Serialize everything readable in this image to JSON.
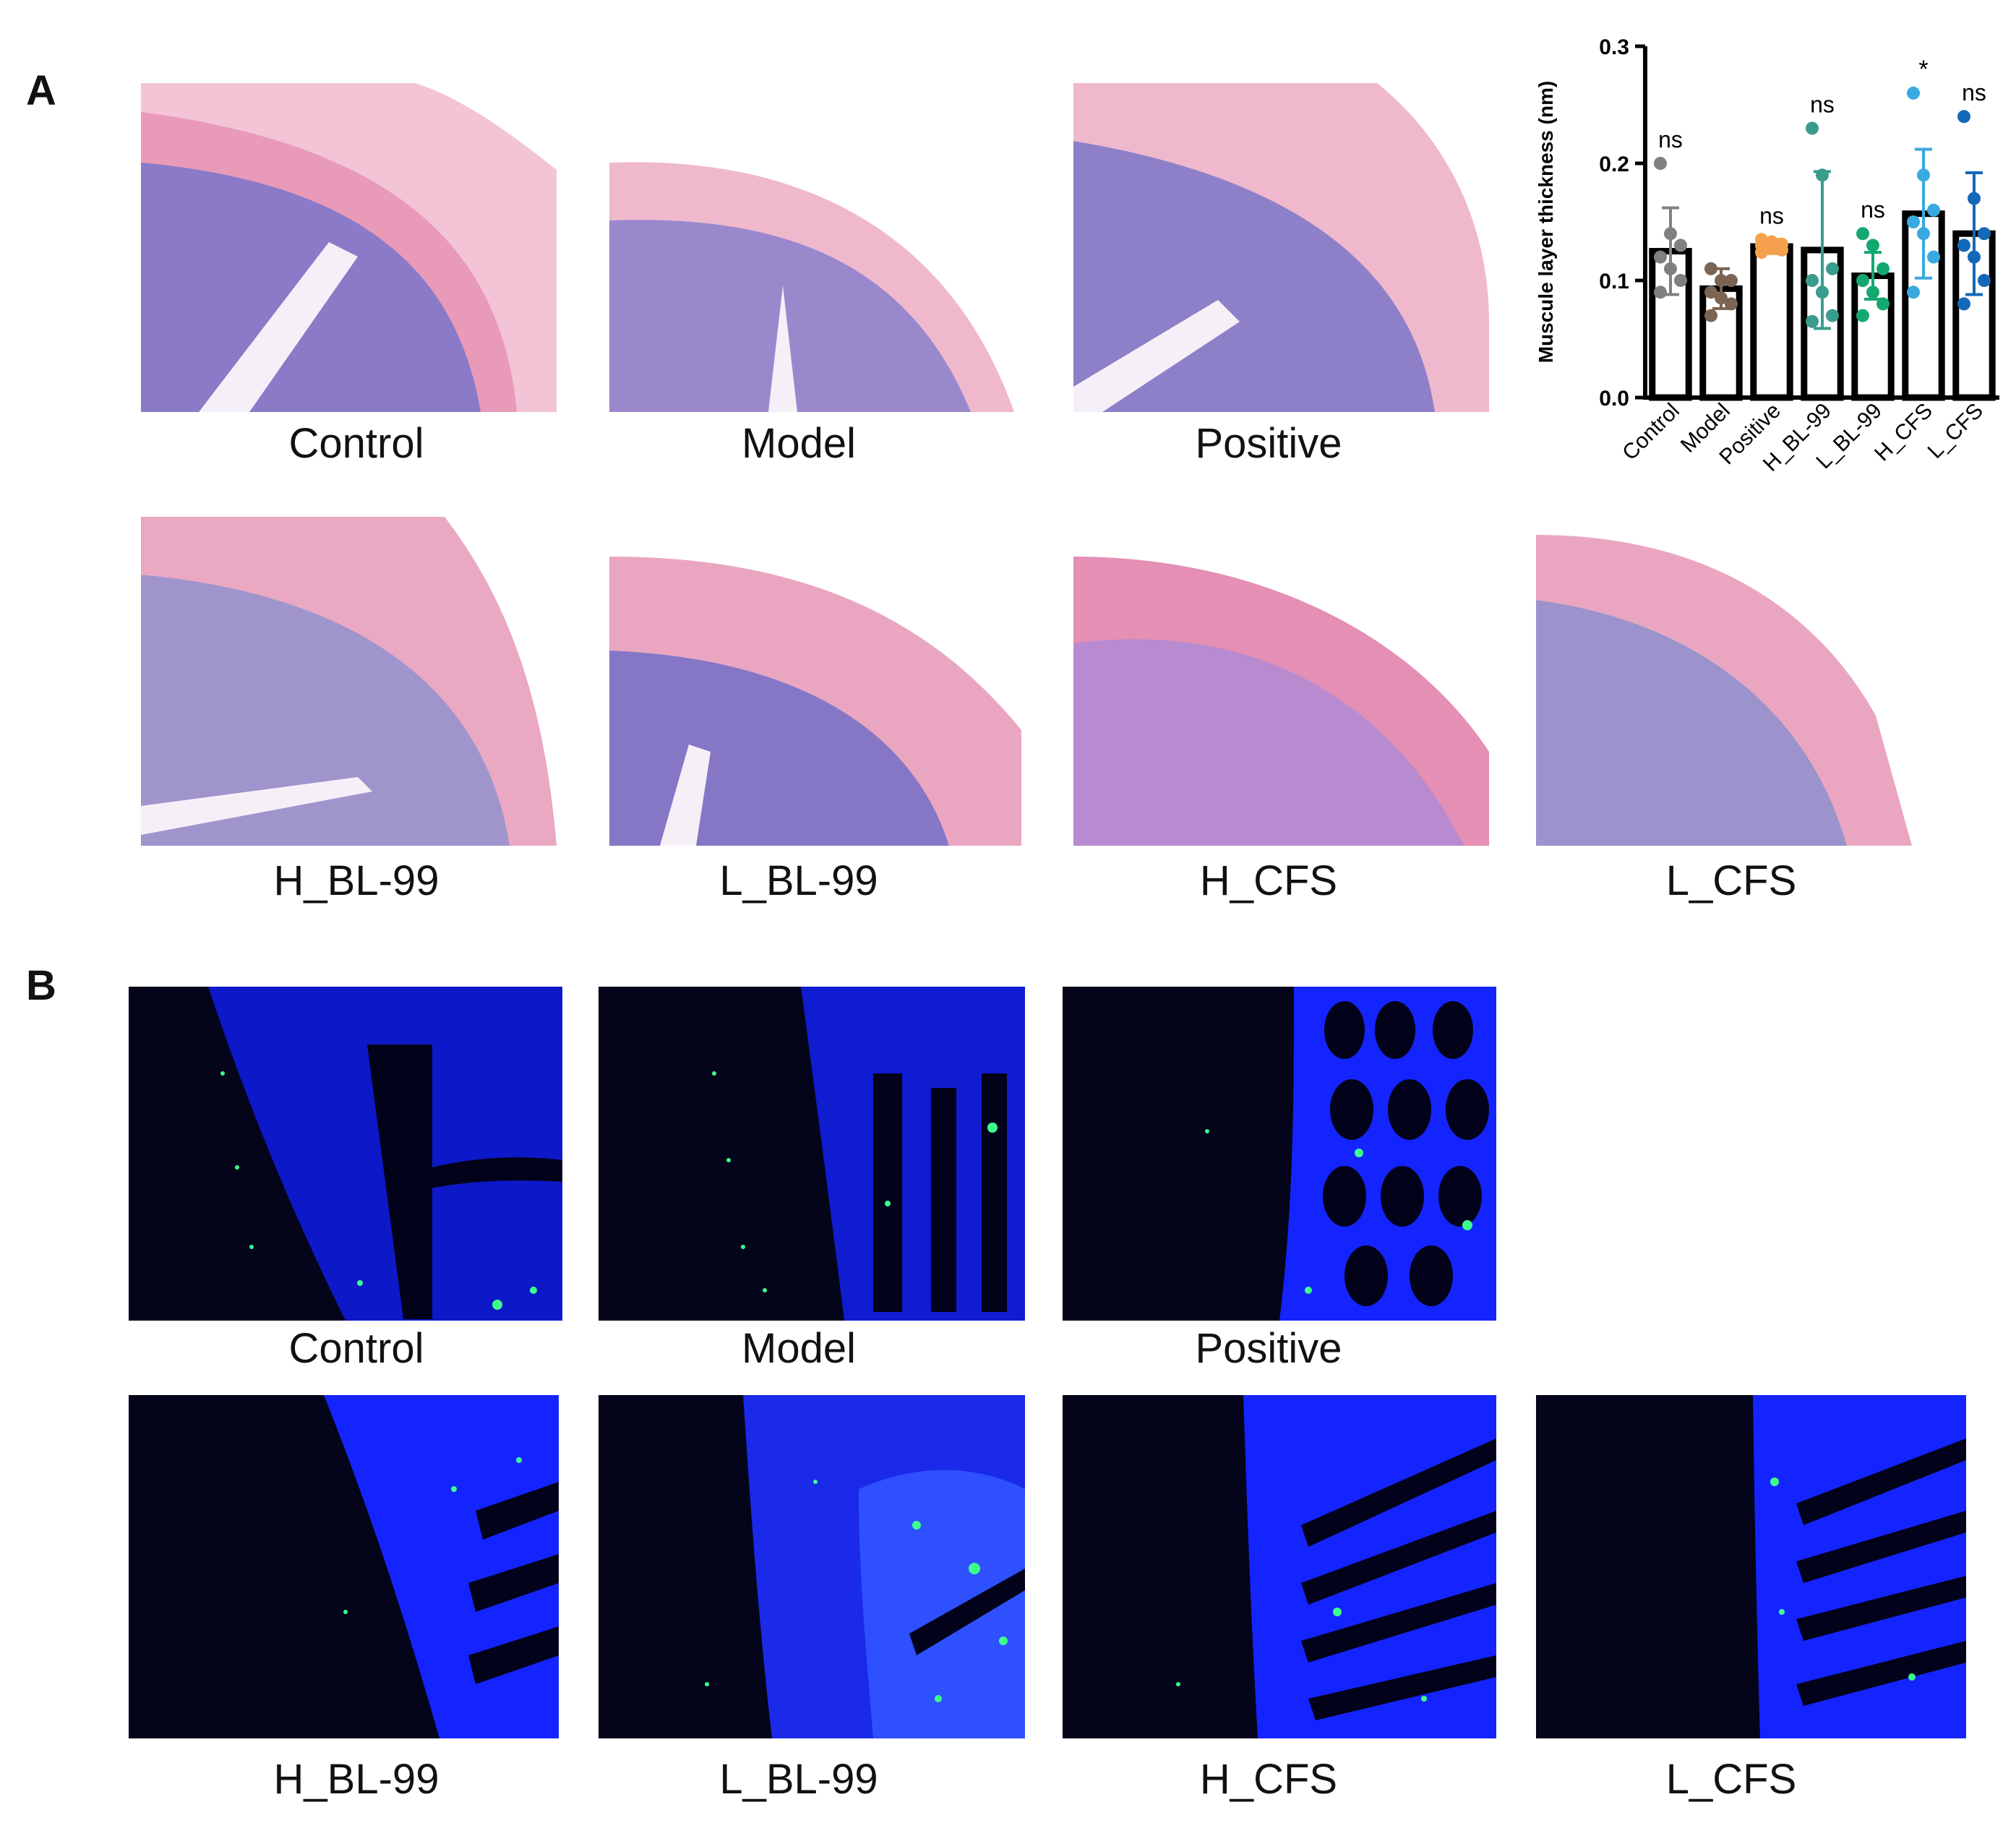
{
  "figure": {
    "panel_a_label": "A",
    "panel_b_label": "B"
  },
  "panel_a": {
    "captions": [
      "Control",
      "Model",
      "Positive",
      "H_BL-99",
      "L_BL-99",
      "H_CFS",
      "L_CFS"
    ]
  },
  "panel_b": {
    "captions": [
      "Control",
      "Model",
      "Positive",
      "H_BL-99",
      "L_BL-99",
      "H_CFS",
      "L_CFS"
    ]
  },
  "colors": {
    "he_pink": "#e89ab8",
    "he_purple": "#8a7ac8",
    "dapi_blue": "#1f2cff",
    "gfp_green": "#3cff8c"
  },
  "chart_data": {
    "type": "bar",
    "ylabel": "Muscule layer thickness (nm)",
    "ylim": [
      0,
      0.3
    ],
    "yticks": [
      "0.0",
      "0.1",
      "0.2",
      "0.3"
    ],
    "categories": [
      "Control",
      "Model",
      "Positive",
      "H_BL-99",
      "L_BL-99",
      "H_CFS",
      "L_CFS"
    ],
    "values": [
      0.125,
      0.093,
      0.129,
      0.126,
      0.104,
      0.157,
      0.14
    ],
    "errors": [
      0.037,
      0.017,
      0.006,
      0.067,
      0.02,
      0.055,
      0.052
    ],
    "significance": [
      "ns",
      "",
      "ns",
      "ns",
      "ns",
      "*",
      "ns"
    ],
    "point_colors": [
      "#808080",
      "#7b6453",
      "#f5a04d",
      "#3a9c8c",
      "#14a870",
      "#3aa9e0",
      "#1468b8"
    ],
    "points": [
      [
        0.2,
        0.14,
        0.13,
        0.12,
        0.11,
        0.1,
        0.09
      ],
      [
        0.11,
        0.1,
        0.1,
        0.09,
        0.085,
        0.08,
        0.07
      ],
      [
        0.135,
        0.133,
        0.131,
        0.13,
        0.128,
        0.126,
        0.124
      ],
      [
        0.23,
        0.19,
        0.11,
        0.1,
        0.09,
        0.07,
        0.065
      ],
      [
        0.14,
        0.13,
        0.11,
        0.1,
        0.09,
        0.08,
        0.07
      ],
      [
        0.26,
        0.19,
        0.16,
        0.15,
        0.14,
        0.12,
        0.09
      ],
      [
        0.24,
        0.17,
        0.14,
        0.13,
        0.12,
        0.1,
        0.08
      ]
    ],
    "grid": false,
    "legend": "none"
  }
}
